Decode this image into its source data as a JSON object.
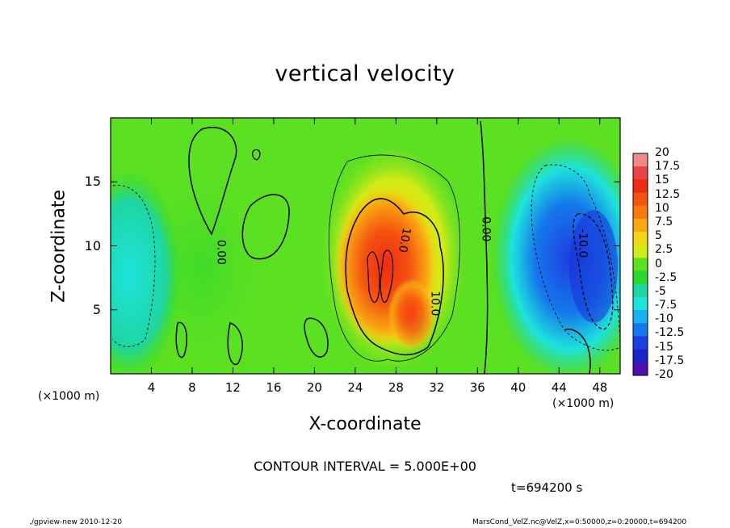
{
  "title": "vertical velocity",
  "footer": {
    "left": "./gpview-new   2010-12-20",
    "right": "MarsCond_VelZ.nc@VelZ,x=0:50000,z=0:20000,t=694200"
  },
  "annotations": {
    "contour_interval": "CONTOUR INTERVAL = 5.000E+00",
    "time": "t=694200 s",
    "x_unit_left": "(×1000 m)",
    "x_unit_right": "(×1000 m)"
  },
  "chart_data": {
    "type": "heatmap",
    "title": "vertical velocity",
    "xlabel": "X-coordinate",
    "ylabel": "Z-coordinate",
    "xlim": [
      0,
      50
    ],
    "ylim": [
      0,
      20
    ],
    "x_ticks": [
      "4",
      "8",
      "12",
      "16",
      "20",
      "24",
      "28",
      "32",
      "36",
      "40",
      "44",
      "48"
    ],
    "x_tick_values": [
      4,
      8,
      12,
      16,
      20,
      24,
      28,
      32,
      36,
      40,
      44,
      48
    ],
    "y_ticks": [
      "5",
      "10",
      "15"
    ],
    "y_tick_values": [
      5,
      10,
      15
    ],
    "contour_labels": [
      {
        "text": "0.00",
        "x": 10.5,
        "z": 9.5,
        "angle": 90
      },
      {
        "text": "10.0",
        "x": 28.5,
        "z": 10.5,
        "angle": 100
      },
      {
        "text": "10.0",
        "x": 31.5,
        "z": 5.5,
        "angle": 90
      },
      {
        "text": "0.00",
        "x": 36.5,
        "z": 11.3,
        "angle": 90
      },
      {
        "text": "-10.0",
        "x": 46.0,
        "z": 10.2,
        "angle": 90
      }
    ],
    "colorbar": {
      "levels": [
        "20",
        "17.5",
        "15",
        "12.5",
        "10",
        "7.5",
        "5",
        "2.5",
        "0",
        "-2.5",
        "-5",
        "-7.5",
        "-10",
        "-12.5",
        "-15",
        "-17.5",
        "-20"
      ],
      "colors": [
        "#f08a8a",
        "#e84646",
        "#ef2a12",
        "#f55310",
        "#f8780e",
        "#f9a811",
        "#f6d417",
        "#d2ea15",
        "#5ce022",
        "#28d82c",
        "#1ed6a3",
        "#1de3dc",
        "#18b0ef",
        "#1578ec",
        "#1c3fe0",
        "#1a24c8",
        "#4d10b0"
      ]
    },
    "features": [
      {
        "type": "updraft",
        "x": 27,
        "z": 9,
        "peak": 17.5
      },
      {
        "type": "downdraft",
        "x": 47,
        "z": 8,
        "peak": -15
      },
      {
        "type": "downdraft",
        "x": 1,
        "z": 8,
        "peak": -7.5
      }
    ]
  }
}
